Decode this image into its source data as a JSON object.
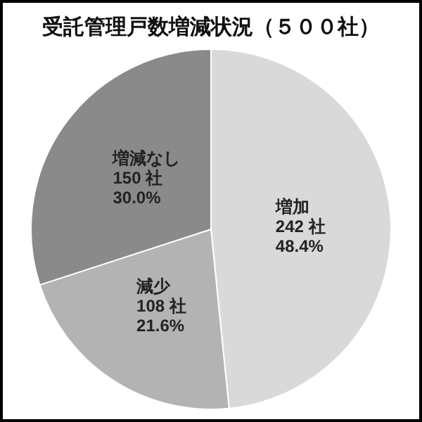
{
  "chart_data": {
    "type": "pie",
    "title": "受託管理戸数増減状況（５００社）",
    "categories": [
      "増加",
      "減少",
      "増減なし"
    ],
    "values": [
      242,
      108,
      150
    ],
    "value_labels": [
      "242 社\n48.4%",
      "108 社\n21.6%",
      "150 社\n30.0%"
    ],
    "colors": [
      "#d9d9d9",
      "#b3b3b3",
      "#8a8a8a"
    ]
  }
}
